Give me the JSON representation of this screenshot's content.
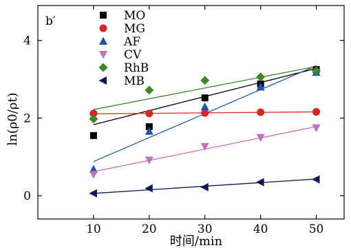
{
  "chart_data": {
    "type": "scatter",
    "panel_label": "b′",
    "xlabel": "时间/min",
    "ylabel": "ln(ρ0/ρt)",
    "xlim": [
      0,
      55
    ],
    "ylim": [
      -0.6,
      4.9
    ],
    "x_ticks": [
      10,
      20,
      30,
      40,
      50
    ],
    "y_ticks": [
      0,
      2,
      4
    ],
    "grid": false,
    "legend_position": "top-left",
    "series": [
      {
        "name": "MO",
        "marker": "square",
        "color": "#000000",
        "line_color": "#000000",
        "x": [
          10,
          20,
          30,
          40,
          50
        ],
        "y": [
          1.55,
          1.78,
          2.52,
          2.88,
          3.25
        ],
        "fit": [
          1.83,
          3.28
        ]
      },
      {
        "name": "MG",
        "marker": "circle",
        "color": "#dd2222",
        "line_color": "#dd2222",
        "x": [
          10,
          20,
          30,
          40,
          50
        ],
        "y": [
          2.12,
          2.12,
          2.13,
          2.15,
          2.16
        ],
        "fit": [
          2.11,
          2.16
        ]
      },
      {
        "name": "AF",
        "marker": "triangle-up",
        "color": "#2255aa",
        "line_color": "#2255aa",
        "x": [
          10,
          20,
          30,
          40,
          50
        ],
        "y": [
          0.68,
          1.66,
          2.29,
          2.8,
          3.18
        ],
        "fit": [
          0.88,
          3.35
        ]
      },
      {
        "name": "CV",
        "marker": "triangle-down",
        "color": "#c070c0",
        "line_color": "#c070c0",
        "x": [
          10,
          20,
          30,
          40,
          50
        ],
        "y": [
          0.55,
          0.92,
          1.27,
          1.5,
          1.75
        ],
        "fit": [
          0.62,
          1.78
        ]
      },
      {
        "name": "RhB",
        "marker": "diamond",
        "color": "#3a8a2a",
        "line_color": "#3a8a2a",
        "x": [
          10,
          20,
          30,
          40,
          50
        ],
        "y": [
          1.98,
          2.72,
          2.97,
          3.06,
          3.22
        ],
        "fit": [
          2.22,
          3.33
        ]
      },
      {
        "name": "MB",
        "marker": "triangle-left",
        "color": "#0d1a55",
        "line_color": "#0d1a55",
        "x": [
          10,
          20,
          30,
          40,
          50
        ],
        "y": [
          0.06,
          0.19,
          0.22,
          0.35,
          0.42
        ],
        "fit": [
          0.06,
          0.43
        ]
      }
    ]
  }
}
